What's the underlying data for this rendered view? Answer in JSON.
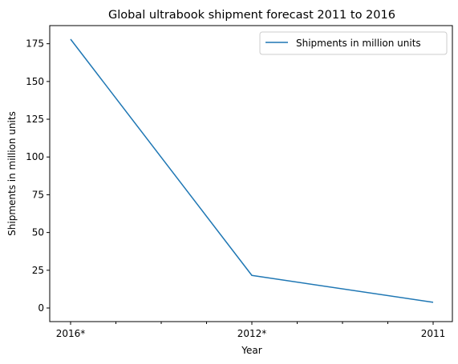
{
  "chart_data": {
    "type": "line",
    "title": "Global ultrabook shipment forecast 2011 to 2016",
    "xlabel": "Year",
    "ylabel": "Shipments in million units",
    "categories": [
      "2016*",
      "2012*",
      "2011"
    ],
    "series": [
      {
        "name": "Shipments in million units",
        "values": [
          178,
          21.6,
          3.8
        ],
        "color": "#1f77b4"
      }
    ],
    "ylim": [
      -9,
      187
    ],
    "yticks": [
      0,
      25,
      50,
      75,
      100,
      125,
      150,
      175
    ],
    "x_minor_ticks_between_labels": 3,
    "legend": "top-right",
    "grid": false
  }
}
